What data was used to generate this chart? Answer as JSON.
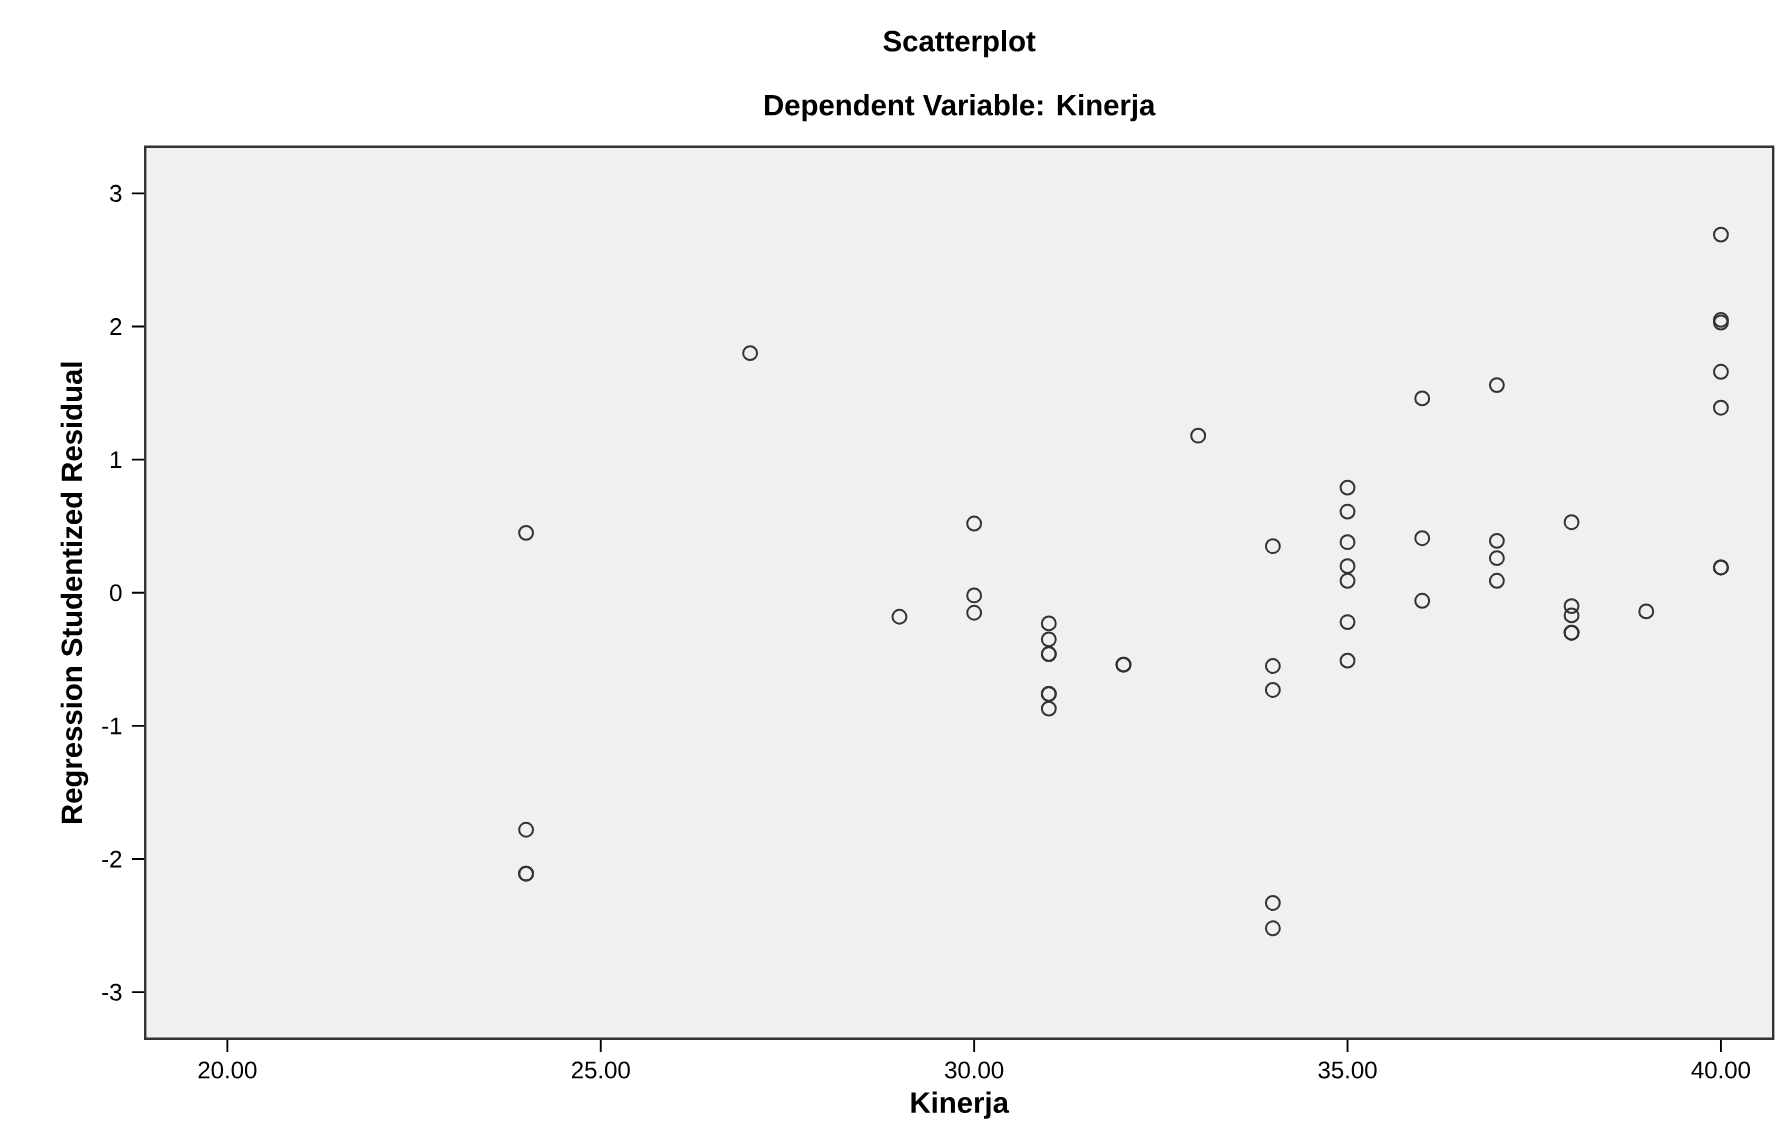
{
  "chart_data": {
    "type": "scatter",
    "title": "Scatterplot",
    "subtitle": "Dependent Variable: Kinerja",
    "xlabel": "Kinerja",
    "ylabel": "Regression Studentized Residual",
    "xlim": [
      18.9,
      40.7
    ],
    "ylim": [
      -3.35,
      3.35
    ],
    "xticks": [
      {
        "value": 20,
        "label": "20.00"
      },
      {
        "value": 25,
        "label": "25.00"
      },
      {
        "value": 30,
        "label": "30.00"
      },
      {
        "value": 35,
        "label": "35.00"
      },
      {
        "value": 40,
        "label": "40.00"
      }
    ],
    "yticks": [
      -3,
      -2,
      -1,
      0,
      1,
      2,
      3
    ],
    "grid": false,
    "marker": "circle",
    "series": [
      {
        "color": "#333333",
        "x": [
          24,
          24,
          24,
          24,
          27,
          29,
          30,
          30,
          30,
          31,
          31,
          31,
          31,
          31,
          31,
          31,
          32,
          32,
          33,
          34,
          34,
          34,
          34,
          34,
          35,
          35,
          35,
          35,
          35,
          35,
          35,
          36,
          36,
          36,
          37,
          37,
          37,
          37,
          38,
          38,
          38,
          38,
          38,
          39,
          40,
          40,
          40,
          40,
          40,
          40,
          40
        ],
        "values": [
          0.45,
          -1.78,
          -2.11,
          -2.11,
          1.8,
          -0.18,
          0.52,
          -0.02,
          -0.15,
          -0.23,
          -0.35,
          -0.46,
          -0.46,
          -0.76,
          -0.76,
          -0.87,
          -0.54,
          -0.54,
          1.18,
          0.35,
          -0.55,
          -0.73,
          -2.33,
          -2.52,
          0.79,
          0.61,
          0.38,
          0.2,
          0.09,
          -0.22,
          -0.51,
          1.46,
          0.41,
          -0.06,
          1.56,
          0.39,
          0.26,
          0.09,
          0.53,
          -0.1,
          -0.17,
          -0.3,
          -0.3,
          -0.14,
          2.69,
          2.05,
          2.03,
          1.66,
          1.39,
          0.19,
          0.19
        ]
      }
    ]
  }
}
